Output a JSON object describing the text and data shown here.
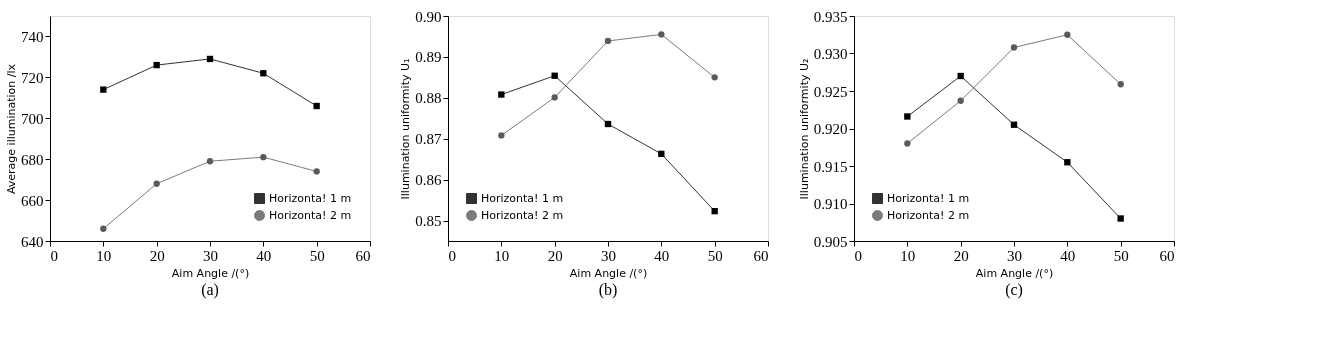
{
  "chart_data": [
    {
      "type": "line",
      "x": [
        10,
        20,
        30,
        40,
        50
      ],
      "xlabel": "Aim Angle /(°)",
      "ylabel": "Average illumination /lx",
      "xlim": [
        0,
        60
      ],
      "xticks": [
        0,
        10,
        20,
        30,
        40,
        50,
        60
      ],
      "ylim": [
        640,
        750
      ],
      "yticks": [
        640,
        660,
        680,
        700,
        720,
        740
      ],
      "grid": false,
      "legend": "bottom right",
      "annotations": [
        "(a)"
      ],
      "series": [
        {
          "name": "Horizonta! 1 m",
          "color": "#000000",
          "marker": "square",
          "values": [
            714,
            726,
            729,
            722,
            706
          ]
        },
        {
          "name": "Horizonta! 2 m",
          "color": "#5a5a5a",
          "marker": "circle",
          "values": [
            646,
            668,
            679,
            681,
            674
          ]
        }
      ]
    },
    {
      "type": "line",
      "x": [
        10,
        20,
        30,
        40,
        50
      ],
      "xlabel": "Aim Angle /(°)",
      "ylabel": "Illumination uniformity U₁",
      "xlim": [
        0,
        60
      ],
      "xticks": [
        0,
        10,
        20,
        30,
        40,
        50,
        60
      ],
      "ylim": [
        0.845,
        0.9
      ],
      "yticks": [
        0.85,
        0.86,
        0.87,
        0.88,
        0.89,
        {
          "value": 0.9,
          "label": "0.90"
        }
      ],
      "grid": false,
      "legend": "bottom left",
      "annotations": [
        "(b)"
      ],
      "series": [
        {
          "name": "Horizonta! 1 m",
          "color": "#000000",
          "marker": "square",
          "values": [
            0.8808,
            0.8854,
            0.8736,
            0.8663,
            0.8523
          ]
        },
        {
          "name": "Horizonta! 2 m",
          "color": "#5a5a5a",
          "marker": "circle",
          "values": [
            0.8708,
            0.8801,
            0.8939,
            0.8955,
            0.885
          ]
        }
      ]
    },
    {
      "type": "line",
      "x": [
        10,
        20,
        30,
        40,
        50
      ],
      "xlabel": "Aim Angle /(°)",
      "ylabel": "Illumination uniformity U₂",
      "xlim": [
        0,
        60
      ],
      "xticks": [
        0,
        10,
        20,
        30,
        40,
        50,
        60
      ],
      "ylim": [
        0.905,
        0.935
      ],
      "yticks": [
        {
          "value": 0.905,
          "label": "0.905"
        },
        {
          "value": 0.91,
          "label": "0.910"
        },
        {
          "value": 0.915,
          "label": "0.915"
        },
        {
          "value": 0.92,
          "label": "0.920"
        },
        {
          "value": 0.925,
          "label": "0.925"
        },
        {
          "value": 0.93,
          "label": "0.930"
        },
        {
          "value": 0.935,
          "label": "0.935"
        }
      ],
      "grid": false,
      "legend": "bottom left",
      "annotations": [
        "(c)"
      ],
      "series": [
        {
          "name": "Horizonta! 1 m",
          "color": "#000000",
          "marker": "square",
          "values": [
            0.9216,
            0.927,
            0.9205,
            0.9155,
            0.908
          ]
        },
        {
          "name": "Horizonta! 2 m",
          "color": "#5a5a5a",
          "marker": "circle",
          "values": [
            0.918,
            0.9237,
            0.9308,
            0.9325,
            0.9259
          ]
        }
      ]
    }
  ]
}
